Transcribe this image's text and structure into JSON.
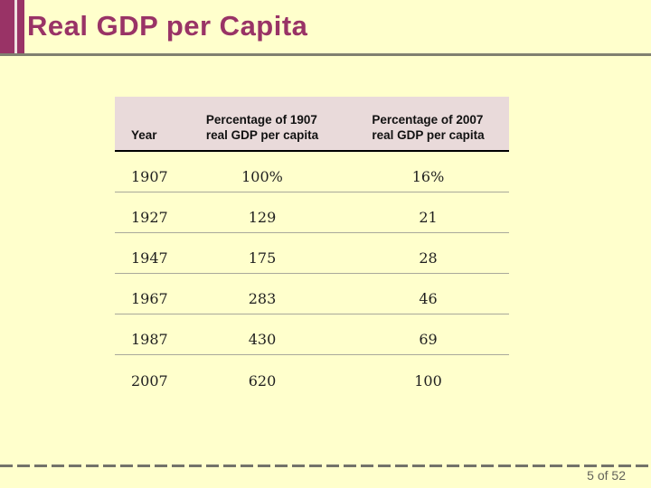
{
  "slide": {
    "title": "Real GDP per Capita",
    "page_indicator": "5 of 52"
  },
  "colors": {
    "background": "#FFFFCC",
    "accent_maroon": "#993366",
    "header_fill": "#E9DADA",
    "title_rule_gray": "#808070",
    "row_divider_gray": "#A9A99B",
    "footer_gray": "#73736A"
  },
  "table": {
    "columns": [
      {
        "label": "Year"
      },
      {
        "line1": "Percentage of 1907",
        "line2": "real GDP per capita"
      },
      {
        "line1": "Percentage of 2007",
        "line2": "real GDP per capita"
      }
    ],
    "rows": [
      {
        "year": "1907",
        "pct_1907": "100%",
        "pct_2007": "16%"
      },
      {
        "year": "1927",
        "pct_1907": "129",
        "pct_2007": "21"
      },
      {
        "year": "1947",
        "pct_1907": "175",
        "pct_2007": "28"
      },
      {
        "year": "1967",
        "pct_1907": "283",
        "pct_2007": "46"
      },
      {
        "year": "1987",
        "pct_1907": "430",
        "pct_2007": "69"
      },
      {
        "year": "2007",
        "pct_1907": "620",
        "pct_2007": "100"
      }
    ]
  }
}
